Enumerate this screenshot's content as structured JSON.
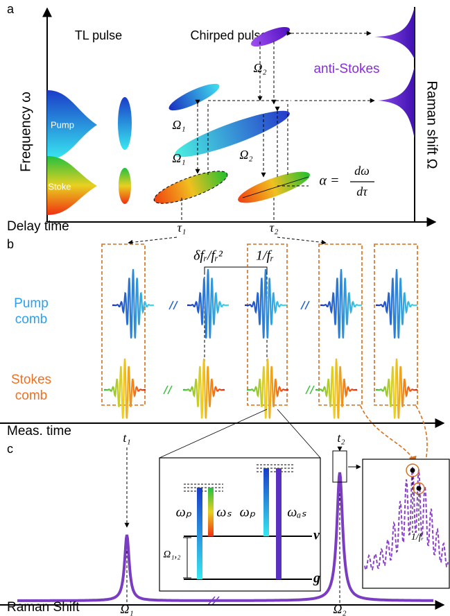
{
  "panel_a": {
    "label": "a",
    "tl_pulse": "TL pulse",
    "chirped_pulse": "Chirped pulse",
    "y_axis": "Frequency ω",
    "pump": "Pump",
    "stoke": "Stoke",
    "omega_labels": [
      "Ω₂",
      "Ω₁",
      "Ω₁",
      "Ω₂"
    ],
    "anti_stokes": "anti-Stokes",
    "raman_axis": "Raman shift Ω",
    "alpha": "α =",
    "alpha_num": "dω",
    "alpha_den": "dτ",
    "x_axis": "Delay time",
    "tau1": "τ₁",
    "tau2": "τ₂"
  },
  "panel_b": {
    "label": "b",
    "delta": "δfᵣ/fᵣ²",
    "period": "1/fᵣ",
    "pump_comb": [
      "Pump",
      "comb"
    ],
    "stokes_comb": [
      "Stokes",
      "comb"
    ],
    "x_axis": "Meas. time",
    "t1": "t₁",
    "t2": "t₂"
  },
  "panel_c": {
    "label": "c",
    "levels": [
      "ωₚ",
      "ωₛ",
      "ωₚ",
      "ωₐₛ"
    ],
    "v": "v",
    "g": "g",
    "omega12": "Ω₁,₂",
    "period": "1/fᵣ",
    "x_axis": "Raman Shift",
    "omega1": "Ω₁",
    "omega2": "Ω₂"
  }
}
